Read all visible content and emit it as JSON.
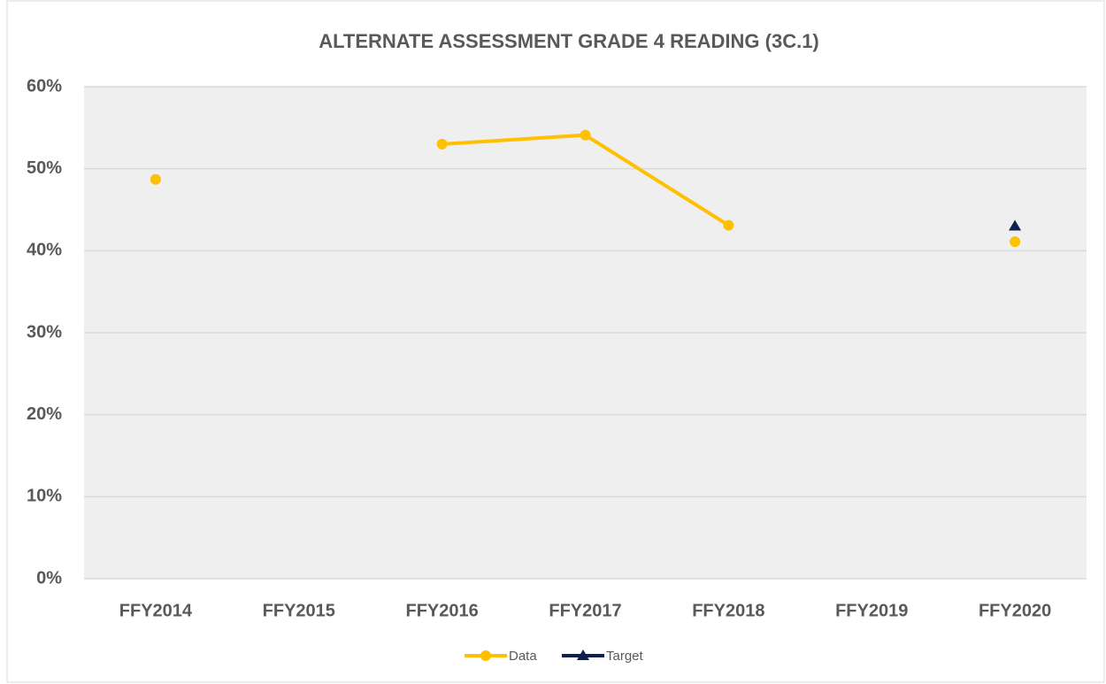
{
  "chart_data": {
    "type": "line",
    "title": "ALTERNATE ASSESSMENT GRADE 4 READING (3C.1)",
    "categories": [
      "FFY2014",
      "FFY2015",
      "FFY2016",
      "FFY2017",
      "FFY2018",
      "FFY2019",
      "FFY2020"
    ],
    "series": [
      {
        "name": "Data",
        "color": "#ffc000",
        "marker": "circle",
        "values": [
          48.7,
          null,
          53.0,
          54.1,
          43.1,
          null,
          41.1
        ]
      },
      {
        "name": "Target",
        "color": "#0f1f4f",
        "marker": "triangle",
        "values": [
          null,
          null,
          null,
          null,
          null,
          null,
          43.0
        ]
      }
    ],
    "ylim": [
      0,
      60
    ],
    "yticks": [
      {
        "value": 0,
        "label": "0%"
      },
      {
        "value": 10,
        "label": "10%"
      },
      {
        "value": 20,
        "label": "20%"
      },
      {
        "value": 30,
        "label": "30%"
      },
      {
        "value": 40,
        "label": "40%"
      },
      {
        "value": 50,
        "label": "50%"
      },
      {
        "value": 60,
        "label": "60%"
      }
    ],
    "grid": true,
    "legend": "bottom"
  }
}
